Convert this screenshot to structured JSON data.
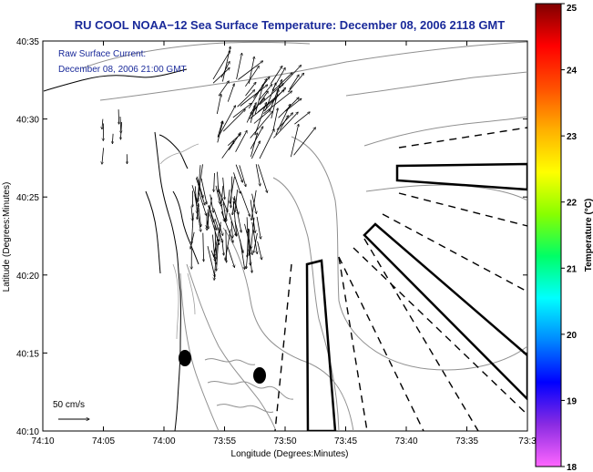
{
  "title": "RU COOL  NOAA−12  Sea Surface Temperature:  December 08, 2006 2118 GMT",
  "annotation": {
    "line1": "Raw Surface Current:",
    "line2": "December 08, 2006 21:00 GMT"
  },
  "axes": {
    "xlabel": "Longitude (Degrees:Minutes)",
    "ylabel": "Latitude (Degrees:Minutes)",
    "xticks": [
      "74:10",
      "74:05",
      "74:00",
      "73:55",
      "73:50",
      "73:45",
      "73:40",
      "73:35",
      "73:3"
    ],
    "yticks": [
      "40:35",
      "40:30",
      "40:25",
      "40:20",
      "40:15",
      "40:10"
    ]
  },
  "scale": {
    "label": "50 cm/s"
  },
  "colorbar": {
    "label": "Temperature (°C)",
    "ticks": [
      "25",
      "24",
      "23",
      "22",
      "21",
      "20",
      "19",
      "18"
    ],
    "min": 18,
    "max": 25,
    "colors": [
      "#ff66ff",
      "#8a2be2",
      "#0000ff",
      "#0088ff",
      "#00ffff",
      "#00ff66",
      "#88ff00",
      "#ffff00",
      "#ffb000",
      "#ff5000",
      "#ff0000",
      "#800000"
    ]
  }
}
